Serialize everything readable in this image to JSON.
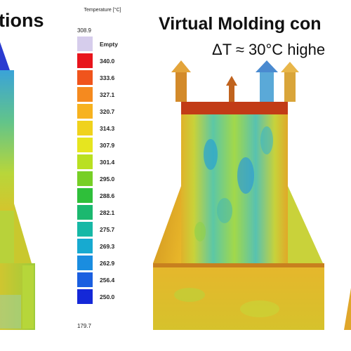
{
  "left_title": "tions",
  "right_title": "Virtual Molding con",
  "right_subtitle": "ΔT ≈ 30°C highe",
  "legend": {
    "title": "Temperature [°C]",
    "max": "308.9",
    "min": "179.7",
    "empty_label": "Empty",
    "bins": [
      {
        "label": "340.0",
        "color": "#e8141c"
      },
      {
        "label": "333.6",
        "color": "#f0541c"
      },
      {
        "label": "327.1",
        "color": "#f58a1f"
      },
      {
        "label": "320.7",
        "color": "#f7b21f"
      },
      {
        "label": "314.3",
        "color": "#f0d21c"
      },
      {
        "label": "307.9",
        "color": "#e6e51f"
      },
      {
        "label": "301.4",
        "color": "#b9e021"
      },
      {
        "label": "295.0",
        "color": "#77cf26"
      },
      {
        "label": "288.6",
        "color": "#2fbf3a"
      },
      {
        "label": "282.1",
        "color": "#1bb86f"
      },
      {
        "label": "275.7",
        "color": "#16b8a6"
      },
      {
        "label": "269.3",
        "color": "#17aad0"
      },
      {
        "label": "262.9",
        "color": "#1a8de0"
      },
      {
        "label": "256.4",
        "color": "#1a5fe0"
      },
      {
        "label": "250.0",
        "color": "#1428d8"
      }
    ],
    "empty_color": "#d6cdec"
  }
}
